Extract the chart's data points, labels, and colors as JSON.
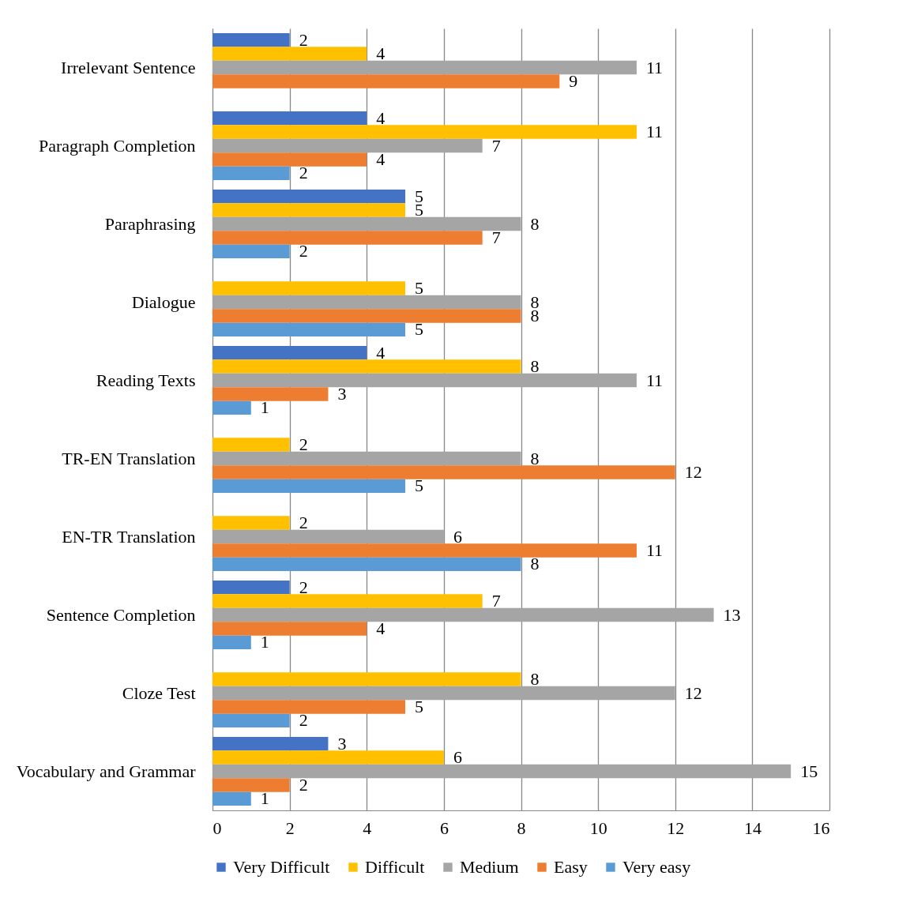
{
  "chart_data": {
    "type": "bar",
    "orientation": "horizontal",
    "categories": [
      "Irrelevant Sentence",
      "Paragraph Completion",
      "Paraphrasing",
      "Dialogue",
      "Reading Texts",
      "TR-EN Translation",
      "EN-TR Translation",
      "Sentence Completion",
      "Cloze Test",
      "Vocabulary and Grammar"
    ],
    "series": [
      {
        "name": "Very Difficult",
        "color": "#4472c4",
        "values": [
          2,
          4,
          5,
          null,
          4,
          null,
          null,
          2,
          null,
          3
        ]
      },
      {
        "name": "Difficult",
        "color": "#ffc000",
        "values": [
          4,
          11,
          5,
          5,
          8,
          2,
          2,
          7,
          8,
          6
        ]
      },
      {
        "name": "Medium",
        "color": "#a5a5a5",
        "values": [
          11,
          7,
          8,
          8,
          11,
          8,
          6,
          13,
          12,
          15
        ]
      },
      {
        "name": "Easy",
        "color": "#ed7d31",
        "values": [
          9,
          4,
          7,
          8,
          3,
          12,
          11,
          4,
          5,
          2
        ]
      },
      {
        "name": "Very easy",
        "color": "#5b9bd5",
        "values": [
          null,
          2,
          2,
          5,
          1,
          5,
          8,
          1,
          2,
          1
        ]
      }
    ],
    "xlim": [
      0,
      16
    ],
    "xticks": [
      0,
      2,
      4,
      6,
      8,
      10,
      12,
      14,
      16
    ],
    "grid": "x",
    "legend": "bottom",
    "data_labels": true
  }
}
